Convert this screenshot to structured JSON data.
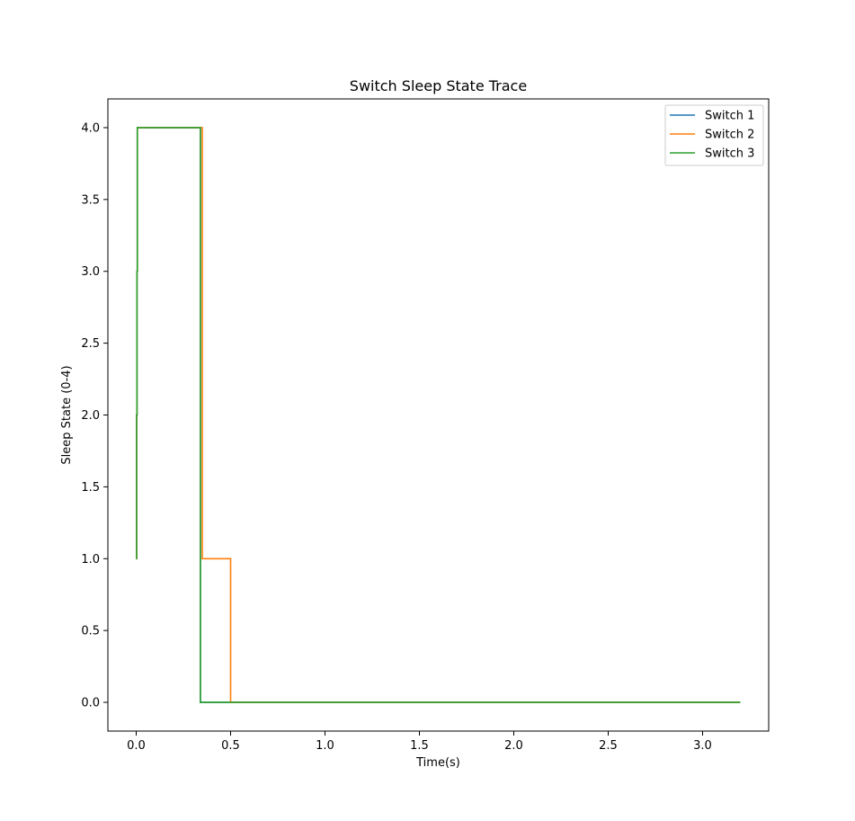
{
  "chart_data": {
    "type": "line",
    "title": "Switch Sleep State Trace",
    "xlabel": "Time(s)",
    "ylabel": "Sleep State (0-4)",
    "xlim": [
      -0.15,
      3.35
    ],
    "ylim": [
      -0.2,
      4.2
    ],
    "xticks": [
      0.0,
      0.5,
      1.0,
      1.5,
      2.0,
      2.5,
      3.0
    ],
    "xtick_labels": [
      "0.0",
      "0.5",
      "1.0",
      "1.5",
      "2.0",
      "2.5",
      "3.0"
    ],
    "yticks": [
      0.0,
      0.5,
      1.0,
      1.5,
      2.0,
      2.5,
      3.0,
      3.5,
      4.0
    ],
    "ytick_labels": [
      "0.0",
      "0.5",
      "1.0",
      "1.5",
      "2.0",
      "2.5",
      "3.0",
      "3.5",
      "4.0"
    ],
    "grid": false,
    "legend_position": "top-right",
    "series": [
      {
        "name": "Switch 1",
        "color": "#1f77b4",
        "step": "post",
        "x": [
          0.0,
          0.002,
          0.004,
          0.006,
          0.34,
          0.36,
          3.2
        ],
        "y": [
          1,
          2,
          3,
          4,
          0,
          0,
          0
        ]
      },
      {
        "name": "Switch 2",
        "color": "#ff7f0e",
        "step": "post",
        "x": [
          0.0,
          0.002,
          0.004,
          0.006,
          0.35,
          0.5,
          3.2
        ],
        "y": [
          1,
          2,
          3,
          4,
          1,
          0,
          0
        ]
      },
      {
        "name": "Switch 3",
        "color": "#2ca02c",
        "step": "post",
        "x": [
          0.0,
          0.002,
          0.004,
          0.006,
          0.34,
          0.36,
          3.2
        ],
        "y": [
          1,
          2,
          3,
          4,
          0,
          0,
          0
        ]
      }
    ]
  }
}
